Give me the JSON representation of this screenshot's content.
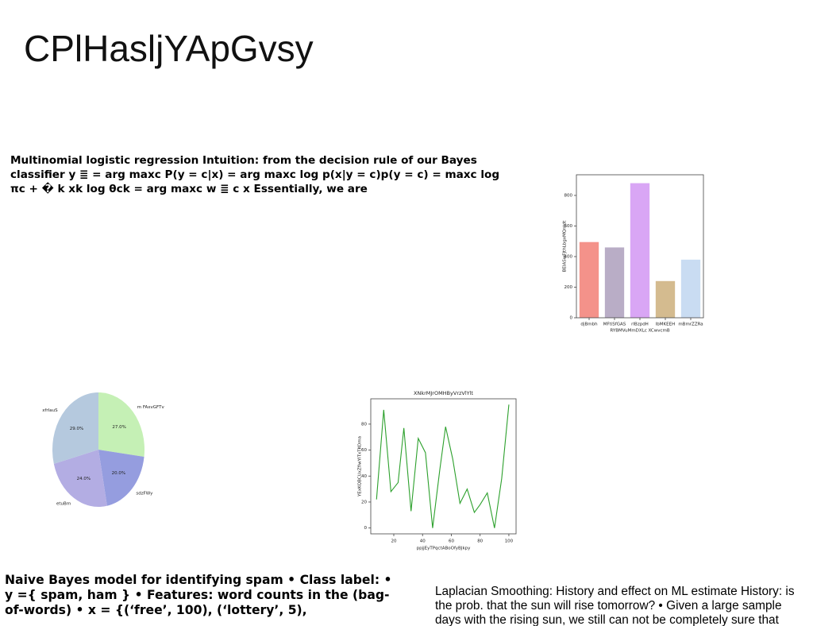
{
  "title": "CPlHasljYApGvsy",
  "text_blocks": [
    "Multinomial logistic regression Intuition: from the decision rule of our Bayes classifier y ≣ = arg maxc P(y = c|x) = arg maxc log p(x|y = c)p(y = c) = maxc log πc + � k xk log θck = arg maxc w ≣ c x Essentially, we are",
    "Naive Bayes model for identifying spam • Class label: • y ={ spam, ham } • Features: word counts in the (bag-of-words) • x = {(‘free’, 100), (‘lottery’, 5),",
    "Laplacian Smoothing: History and effect on ML estimate History: is the prob. that the sun will rise tomorrow? • Given a large sample days with the rising sun, we still can not be completely sure that"
  ],
  "chart_data": [
    {
      "type": "bar",
      "x_label": "RYBMVuMmDXLc XCwvcmB",
      "y_label": "BEIASwFJthLbgxMQntdt",
      "categories": [
        "djBmbh",
        "MFtiSfGAS",
        "rIBzpdH",
        "lbMKEEH",
        "mBmrZZRa"
      ],
      "values": [
        495,
        460,
        880,
        240,
        380
      ],
      "colors": [
        "#f4928a",
        "#b9adc6",
        "#d9a6f5",
        "#d4bb8f",
        "#c9dcf2"
      ],
      "ylim": [
        0,
        935
      ],
      "yticks": [
        0,
        200,
        400,
        600,
        800
      ]
    },
    {
      "type": "pie",
      "categories": [
        "m FAxvGFTv",
        "sdzFWy",
        "etuBm",
        "xfrIauS"
      ],
      "values": [
        27,
        20,
        24,
        29
      ],
      "value_labels": [
        "27.0%",
        "20.0%",
        "24.0%",
        "29.0%"
      ],
      "colors": [
        "#c5f0b5",
        "#959ddf",
        "#b3ade3",
        "#b5c9de"
      ]
    },
    {
      "type": "line",
      "title": "XNkrMJrOMHByVrzVlYlt",
      "x_label": "ppjjEyTPqctABoOfyBJkpy",
      "y_label": "YExKQBCUxZfiwYITxTKOma",
      "x": [
        8,
        13,
        18,
        23,
        27,
        32,
        37,
        42,
        47,
        52,
        56,
        61,
        66,
        71,
        76,
        80,
        85,
        90,
        95,
        100
      ],
      "series": [
        {
          "name": "series",
          "color": "#2ca02c",
          "values": [
            22,
            91,
            28,
            35,
            77,
            13,
            69,
            58,
            0,
            45,
            78,
            53,
            19,
            30,
            12,
            18,
            27,
            0,
            38,
            95
          ]
        }
      ],
      "xlim": [
        4,
        105
      ],
      "ylim": [
        -4.5,
        99.5
      ],
      "xticks": [
        20,
        40,
        60,
        80,
        100
      ],
      "yticks": [
        0,
        20,
        40,
        60,
        80
      ]
    }
  ]
}
